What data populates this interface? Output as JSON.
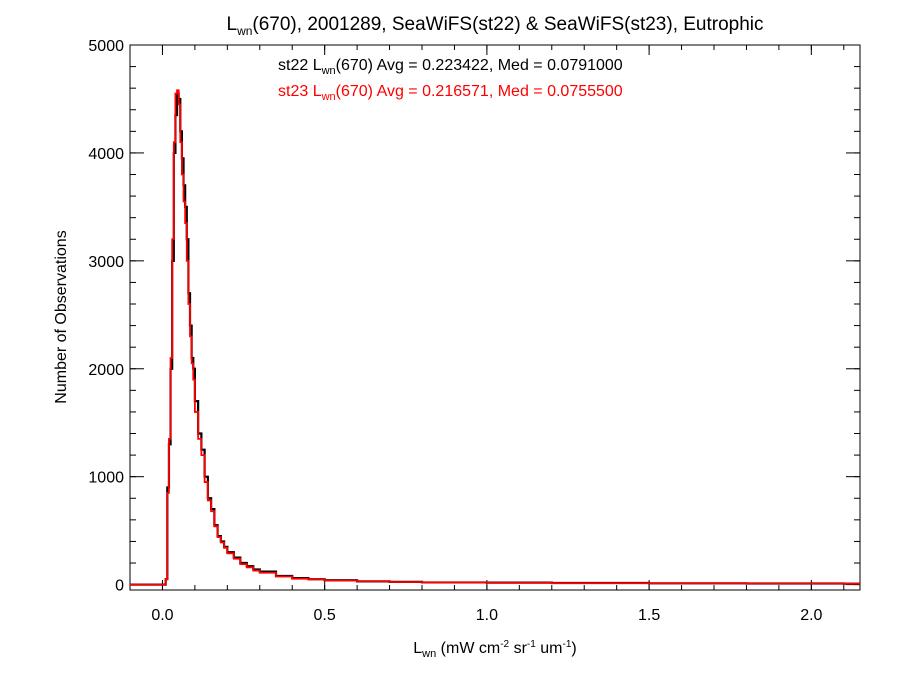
{
  "chart_data": {
    "type": "histogram",
    "title": {
      "base": "L",
      "sub": "wn",
      "rest": "(670), 2001289, SeaWiFS(st22) & SeaWiFS(st23), Eutrophic"
    },
    "xlabel": {
      "base": "L",
      "sub": "wn",
      "rest": " (mW cm",
      "sup1": "-2",
      "rest2": " sr",
      "sup2": "-1",
      "rest3": " um",
      "sup3": "-1",
      "rest4": ")"
    },
    "ylabel": "Number of Observations",
    "xlim": [
      -0.1,
      2.15
    ],
    "ylim": [
      -50,
      5000
    ],
    "x_ticks": [
      {
        "value": 0.0,
        "label": "0.0"
      },
      {
        "value": 0.5,
        "label": "0.5"
      },
      {
        "value": 1.0,
        "label": "1.0"
      },
      {
        "value": 1.5,
        "label": "1.5"
      },
      {
        "value": 2.0,
        "label": "2.0"
      }
    ],
    "y_ticks": [
      {
        "value": 0,
        "label": "0"
      },
      {
        "value": 1000,
        "label": "1000"
      },
      {
        "value": 2000,
        "label": "2000"
      },
      {
        "value": 3000,
        "label": "3000"
      },
      {
        "value": 4000,
        "label": "4000"
      },
      {
        "value": 5000,
        "label": "5000"
      }
    ],
    "grid": false,
    "legend_placement": "top-center",
    "series": [
      {
        "name": "st22",
        "color": "#000000",
        "annotation": {
          "pre": "st22 L",
          "sub": "wn",
          "post": "(670) Avg = 0.223422, Med = 0.0791000"
        },
        "points": [
          [
            -0.1,
            0
          ],
          [
            0.0,
            0
          ],
          [
            0.01,
            50
          ],
          [
            0.015,
            900
          ],
          [
            0.02,
            1300
          ],
          [
            0.025,
            2000
          ],
          [
            0.03,
            3000
          ],
          [
            0.035,
            4000
          ],
          [
            0.04,
            4350
          ],
          [
            0.045,
            4550
          ],
          [
            0.05,
            4500
          ],
          [
            0.055,
            4200
          ],
          [
            0.06,
            3950
          ],
          [
            0.065,
            3700
          ],
          [
            0.07,
            3500
          ],
          [
            0.075,
            3200
          ],
          [
            0.08,
            2700
          ],
          [
            0.085,
            2400
          ],
          [
            0.09,
            2100
          ],
          [
            0.095,
            2000
          ],
          [
            0.1,
            1700
          ],
          [
            0.11,
            1400
          ],
          [
            0.12,
            1250
          ],
          [
            0.13,
            1000
          ],
          [
            0.14,
            800
          ],
          [
            0.15,
            700
          ],
          [
            0.16,
            550
          ],
          [
            0.17,
            450
          ],
          [
            0.18,
            400
          ],
          [
            0.19,
            350
          ],
          [
            0.2,
            300
          ],
          [
            0.22,
            250
          ],
          [
            0.24,
            200
          ],
          [
            0.26,
            170
          ],
          [
            0.28,
            140
          ],
          [
            0.3,
            120
          ],
          [
            0.35,
            80
          ],
          [
            0.4,
            60
          ],
          [
            0.45,
            50
          ],
          [
            0.5,
            40
          ],
          [
            0.6,
            30
          ],
          [
            0.7,
            25
          ],
          [
            0.8,
            20
          ],
          [
            1.0,
            18
          ],
          [
            1.2,
            15
          ],
          [
            1.5,
            12
          ],
          [
            1.8,
            10
          ],
          [
            2.1,
            8
          ]
        ]
      },
      {
        "name": "st23",
        "color": "#ff0000",
        "annotation": {
          "pre": "st23 L",
          "sub": "wn",
          "post": "(670) Avg = 0.216571, Med = 0.0755500"
        },
        "points": [
          [
            -0.1,
            0
          ],
          [
            0.0,
            0
          ],
          [
            0.01,
            50
          ],
          [
            0.015,
            850
          ],
          [
            0.02,
            1350
          ],
          [
            0.025,
            2100
          ],
          [
            0.03,
            3200
          ],
          [
            0.035,
            4100
          ],
          [
            0.04,
            4550
          ],
          [
            0.045,
            4580
          ],
          [
            0.05,
            4450
          ],
          [
            0.055,
            4100
          ],
          [
            0.06,
            3800
          ],
          [
            0.065,
            3550
          ],
          [
            0.07,
            3350
          ],
          [
            0.075,
            3000
          ],
          [
            0.08,
            2600
          ],
          [
            0.085,
            2300
          ],
          [
            0.09,
            2050
          ],
          [
            0.095,
            1900
          ],
          [
            0.1,
            1600
          ],
          [
            0.11,
            1350
          ],
          [
            0.12,
            1200
          ],
          [
            0.13,
            950
          ],
          [
            0.14,
            780
          ],
          [
            0.15,
            680
          ],
          [
            0.16,
            540
          ],
          [
            0.17,
            440
          ],
          [
            0.18,
            390
          ],
          [
            0.19,
            340
          ],
          [
            0.2,
            290
          ],
          [
            0.22,
            240
          ],
          [
            0.24,
            190
          ],
          [
            0.26,
            160
          ],
          [
            0.28,
            130
          ],
          [
            0.3,
            110
          ],
          [
            0.35,
            75
          ],
          [
            0.4,
            55
          ],
          [
            0.45,
            48
          ],
          [
            0.5,
            38
          ],
          [
            0.6,
            30
          ],
          [
            0.7,
            24
          ],
          [
            0.8,
            20
          ],
          [
            1.0,
            17
          ],
          [
            1.2,
            14
          ],
          [
            1.5,
            12
          ],
          [
            1.8,
            10
          ],
          [
            2.1,
            8
          ]
        ]
      }
    ]
  }
}
